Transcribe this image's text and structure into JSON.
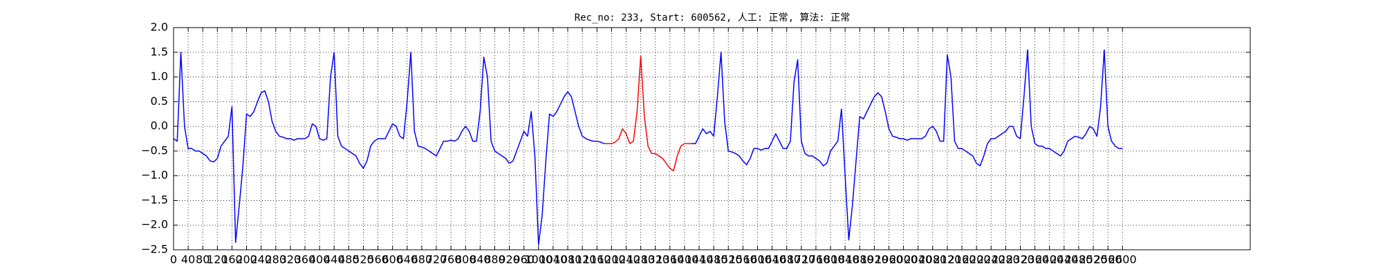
{
  "chart_data": {
    "type": "line",
    "title": "Rec_no: 233, Start: 600562, 人工: 正常, 算法: 正常",
    "xlim": [
      0,
      2950
    ],
    "xticks": [
      0,
      40,
      80,
      120,
      160,
      200,
      240,
      280,
      320,
      360,
      400,
      440,
      480,
      520,
      560,
      600,
      640,
      680,
      720,
      760,
      800,
      840,
      880,
      920,
      960,
      1000,
      1040,
      1080,
      1120,
      1160,
      1200,
      1240,
      1280,
      1320,
      1360,
      1400,
      1440,
      1480,
      1520,
      1560,
      1600,
      1640,
      1680,
      1720,
      1760,
      1800,
      1840,
      1880,
      1920,
      1960,
      2000,
      2040,
      2080,
      2120,
      2160,
      2200,
      2240,
      2280,
      2320,
      2360,
      2400,
      2440,
      2480,
      2520,
      2560,
      2600
    ],
    "ylim": [
      -2.5,
      2.0
    ],
    "yticks": [
      {
        "value": -2.5,
        "label": "−2.5"
      },
      {
        "value": -2.0,
        "label": "−2.0"
      },
      {
        "value": -1.5,
        "label": "−1.5"
      },
      {
        "value": -1.0,
        "label": "−1.0"
      },
      {
        "value": -0.5,
        "label": "−0.5"
      },
      {
        "value": 0,
        "label": "0.0"
      },
      {
        "value": 0.5,
        "label": "0.5"
      },
      {
        "value": 1.0,
        "label": "1.0"
      },
      {
        "value": 1.5,
        "label": "1.5"
      },
      {
        "value": 2.0,
        "label": "2.0"
      }
    ],
    "grid": true,
    "series": [
      {
        "color": "#0000ff",
        "x": [
          0,
          10,
          20,
          30,
          40,
          50,
          60,
          70,
          80,
          90,
          100,
          110,
          120,
          130,
          140,
          150,
          160,
          170,
          180,
          190,
          200,
          210,
          220,
          230,
          240,
          250,
          260,
          270,
          280,
          290,
          300,
          310,
          320,
          330,
          340,
          350,
          360,
          370,
          380,
          390,
          400,
          410,
          420,
          430,
          440,
          450,
          460,
          470,
          480,
          490,
          500,
          510,
          520,
          530,
          540,
          550,
          560,
          570,
          580,
          590,
          600,
          610,
          620,
          630,
          640,
          650,
          660,
          670,
          680,
          690,
          700,
          710,
          720,
          730,
          740,
          750,
          760,
          770,
          780,
          790,
          800,
          810,
          820,
          830,
          840,
          850,
          860,
          870,
          880,
          890,
          900,
          910,
          920,
          930,
          940,
          950,
          960,
          970,
          980,
          990,
          1000,
          1010,
          1020,
          1030,
          1040,
          1050,
          1060,
          1070,
          1080,
          1090,
          1100,
          1110,
          1120,
          1130,
          1140,
          1150,
          1160,
          1170,
          1180
        ],
        "values": [
          -0.25,
          -0.3,
          1.5,
          0.0,
          -0.45,
          -0.45,
          -0.5,
          -0.5,
          -0.55,
          -0.6,
          -0.7,
          -0.72,
          -0.65,
          -0.4,
          -0.3,
          -0.2,
          0.4,
          -2.35,
          -1.6,
          -0.8,
          0.25,
          0.2,
          0.3,
          0.5,
          0.68,
          0.72,
          0.5,
          0.1,
          -0.1,
          -0.2,
          -0.22,
          -0.25,
          -0.25,
          -0.28,
          -0.25,
          -0.25,
          -0.25,
          -0.2,
          0.05,
          0.0,
          -0.25,
          -0.28,
          -0.25,
          1.0,
          1.5,
          -0.2,
          -0.4,
          -0.45,
          -0.5,
          -0.55,
          -0.6,
          -0.75,
          -0.85,
          -0.7,
          -0.4,
          -0.3,
          -0.25,
          -0.25,
          -0.25,
          -0.1,
          0.05,
          0.0,
          -0.2,
          -0.25,
          0.5,
          1.5,
          -0.1,
          -0.4,
          -0.42,
          -0.45,
          -0.5,
          -0.55,
          -0.6,
          -0.45,
          -0.3,
          -0.3,
          -0.28,
          -0.3,
          -0.25,
          -0.1,
          0.0,
          -0.1,
          -0.3,
          -0.3,
          0.3,
          1.4,
          1.0,
          -0.3,
          -0.5,
          -0.55,
          -0.6,
          -0.65,
          -0.75,
          -0.7,
          -0.5,
          -0.3,
          -0.1,
          -0.2,
          0.3,
          -0.6,
          -2.4,
          -1.8,
          -0.7,
          0.25,
          0.2,
          0.3,
          0.45,
          0.6,
          0.7,
          0.6,
          0.3,
          0.0,
          -0.2,
          -0.25,
          -0.28,
          -0.3,
          -0.3,
          -0.32,
          -0.35
        ]
      },
      {
        "color": "#ff0000",
        "x": [
          1180,
          1190,
          1200,
          1210,
          1220,
          1230,
          1240,
          1250,
          1260,
          1270,
          1280,
          1290,
          1300,
          1310,
          1320,
          1330,
          1340,
          1350,
          1360,
          1370,
          1380,
          1390,
          1400,
          1410,
          1420
        ],
        "values": [
          -0.35,
          -0.35,
          -0.35,
          -0.32,
          -0.25,
          -0.05,
          -0.15,
          -0.35,
          -0.3,
          0.3,
          1.42,
          0.2,
          -0.4,
          -0.55,
          -0.55,
          -0.6,
          -0.65,
          -0.75,
          -0.85,
          -0.9,
          -0.6,
          -0.4,
          -0.35,
          -0.35,
          -0.35
        ]
      },
      {
        "color": "#0000ff",
        "x": [
          1420,
          1430,
          1440,
          1450,
          1460,
          1470,
          1480,
          1490,
          1500,
          1510,
          1520,
          1530,
          1540,
          1550,
          1560,
          1570,
          1580,
          1590,
          1600,
          1610,
          1620,
          1630,
          1640,
          1650,
          1660,
          1670,
          1680,
          1690,
          1700,
          1710,
          1720,
          1730,
          1740,
          1750,
          1760,
          1770,
          1780,
          1790,
          1800,
          1810,
          1820,
          1830,
          1840,
          1850,
          1860,
          1870,
          1880,
          1890,
          1900,
          1910,
          1920,
          1930,
          1940,
          1950,
          1960,
          1970,
          1980,
          1990,
          2000,
          2010,
          2020,
          2030,
          2040,
          2050,
          2060,
          2070,
          2080,
          2090,
          2100,
          2110,
          2120,
          2130,
          2140,
          2150,
          2160,
          2170,
          2180,
          2190,
          2200,
          2210,
          2220,
          2230,
          2240,
          2250,
          2260,
          2270,
          2280,
          2290,
          2300,
          2310,
          2320,
          2330,
          2340,
          2350,
          2360,
          2370,
          2380,
          2390,
          2400,
          2410,
          2420,
          2430,
          2440,
          2450,
          2460,
          2470,
          2480,
          2490,
          2500,
          2510,
          2520,
          2530,
          2540,
          2550,
          2560,
          2570,
          2580,
          2590,
          2600
        ],
        "values": [
          -0.35,
          -0.35,
          -0.2,
          -0.05,
          -0.15,
          -0.1,
          -0.2,
          0.6,
          1.5,
          0.1,
          -0.5,
          -0.52,
          -0.55,
          -0.6,
          -0.7,
          -0.78,
          -0.65,
          -0.45,
          -0.45,
          -0.48,
          -0.45,
          -0.45,
          -0.3,
          -0.15,
          -0.3,
          -0.45,
          -0.45,
          -0.3,
          0.9,
          1.35,
          -0.3,
          -0.55,
          -0.6,
          -0.6,
          -0.65,
          -0.7,
          -0.8,
          -0.75,
          -0.5,
          -0.4,
          -0.3,
          0.35,
          -1.0,
          -2.3,
          -1.6,
          -0.7,
          0.2,
          0.15,
          0.3,
          0.45,
          0.6,
          0.68,
          0.6,
          0.3,
          -0.05,
          -0.2,
          -0.22,
          -0.25,
          -0.25,
          -0.28,
          -0.25,
          -0.25,
          -0.25,
          -0.25,
          -0.2,
          -0.05,
          0.0,
          -0.1,
          -0.3,
          -0.3,
          1.45,
          1.0,
          -0.3,
          -0.45,
          -0.45,
          -0.5,
          -0.55,
          -0.6,
          -0.75,
          -0.8,
          -0.6,
          -0.35,
          -0.25,
          -0.25,
          -0.2,
          -0.15,
          -0.1,
          0.0,
          0.0,
          -0.2,
          -0.25,
          0.6,
          1.55,
          0.0,
          -0.35,
          -0.4,
          -0.4,
          -0.45,
          -0.45,
          -0.5,
          -0.55,
          -0.6,
          -0.5,
          -0.3,
          -0.25,
          -0.2,
          -0.22,
          -0.25,
          -0.15,
          0.0,
          -0.05,
          -0.2,
          0.4,
          1.55,
          0.0,
          -0.3,
          -0.4,
          -0.45,
          -0.45
        ]
      }
    ]
  }
}
